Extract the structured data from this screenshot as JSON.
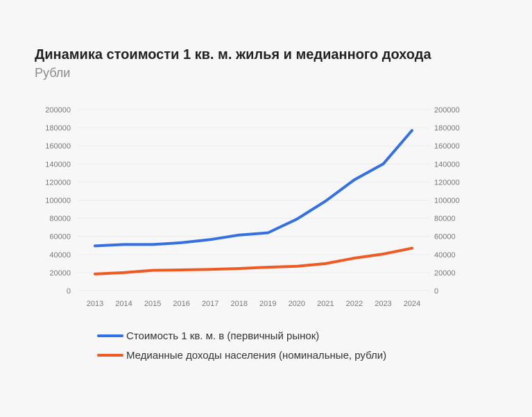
{
  "title": "Динамика стоимости 1 кв. м. жилья и медианного дохода",
  "subtitle": "Рубли",
  "chart_data": {
    "type": "line",
    "title": "Динамика стоимости 1 кв. м. жилья и медианного дохода",
    "subtitle": "Рубли",
    "categories": [
      "2013",
      "2014",
      "2015",
      "2016",
      "2017",
      "2018",
      "2019",
      "2020",
      "2021",
      "2022",
      "2023",
      "2024"
    ],
    "ylim": [
      0,
      200000
    ],
    "yticks": [
      "0",
      "20000",
      "40000",
      "60000",
      "80000",
      "100000",
      "120000",
      "140000",
      "160000",
      "180000",
      "200000"
    ],
    "y2ticks": [
      "0",
      "20000",
      "40000",
      "60000",
      "80000",
      "100000",
      "120000",
      "140000",
      "160000",
      "180000",
      "200000"
    ],
    "grid": true,
    "legend_position": "bottom",
    "series": [
      {
        "name": "Стоимость 1 кв. м. в (первичный рынок)",
        "color": "#3470e4",
        "values": [
          49500,
          51000,
          51000,
          53000,
          56500,
          61500,
          64000,
          79000,
          99000,
          122500,
          140000,
          177000
        ]
      },
      {
        "name": "Медианные доходы населения (номинальные, рубли)",
        "color": "#ef5a23",
        "values": [
          18500,
          20000,
          22500,
          23000,
          23500,
          24500,
          26000,
          27000,
          30000,
          36000,
          40500,
          47000
        ]
      }
    ]
  }
}
